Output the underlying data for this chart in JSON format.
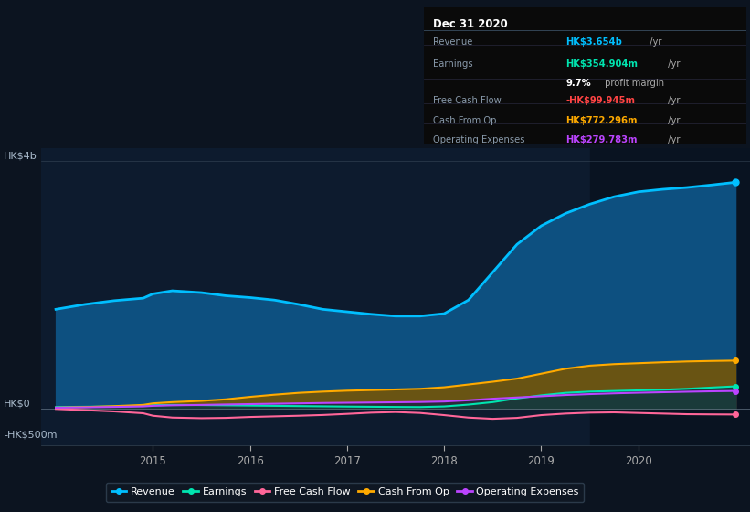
{
  "bg_color": "#0c1420",
  "chart_bg": "#0d1b2e",
  "overlay_color": "#091321",
  "x": [
    2014.0,
    2014.3,
    2014.6,
    2014.9,
    2015.0,
    2015.2,
    2015.5,
    2015.75,
    2016.0,
    2016.25,
    2016.5,
    2016.75,
    2017.0,
    2017.25,
    2017.5,
    2017.75,
    2018.0,
    2018.25,
    2018.5,
    2018.75,
    2019.0,
    2019.25,
    2019.5,
    2019.75,
    2020.0,
    2020.25,
    2020.5,
    2020.75,
    2021.0
  ],
  "revenue": [
    1600,
    1680,
    1740,
    1780,
    1850,
    1900,
    1870,
    1820,
    1790,
    1750,
    1680,
    1600,
    1560,
    1520,
    1490,
    1490,
    1530,
    1750,
    2200,
    2650,
    2950,
    3150,
    3300,
    3420,
    3500,
    3540,
    3570,
    3610,
    3654
  ],
  "earnings": [
    20,
    25,
    30,
    40,
    50,
    55,
    52,
    48,
    44,
    40,
    36,
    32,
    28,
    25,
    22,
    20,
    30,
    60,
    100,
    160,
    210,
    250,
    270,
    280,
    290,
    300,
    315,
    335,
    355
  ],
  "free_cash_flow": [
    -10,
    -30,
    -50,
    -80,
    -120,
    -150,
    -160,
    -155,
    -140,
    -130,
    -120,
    -108,
    -90,
    -70,
    -60,
    -75,
    -110,
    -150,
    -170,
    -155,
    -110,
    -85,
    -70,
    -65,
    -75,
    -85,
    -95,
    -98,
    -100
  ],
  "cash_from_op": [
    10,
    20,
    35,
    55,
    80,
    100,
    120,
    145,
    185,
    220,
    250,
    270,
    285,
    295,
    305,
    315,
    340,
    385,
    430,
    480,
    560,
    640,
    690,
    715,
    730,
    745,
    758,
    766,
    772
  ],
  "operating_expenses": [
    10,
    15,
    22,
    30,
    40,
    48,
    55,
    62,
    68,
    74,
    80,
    86,
    90,
    94,
    98,
    102,
    110,
    130,
    155,
    175,
    195,
    215,
    230,
    242,
    252,
    260,
    268,
    275,
    280
  ],
  "xlim": [
    2013.85,
    2021.15
  ],
  "ylim": [
    -600,
    4200
  ],
  "overlay_start": 2019.5,
  "xticks": [
    2015,
    2016,
    2017,
    2018,
    2019,
    2020
  ],
  "line_colors": {
    "revenue": "#00bfff",
    "earnings": "#00e5b0",
    "free_cash_flow": "#ff6699",
    "cash_from_op": "#ffaa00",
    "operating_expenses": "#bb44ff"
  },
  "fill_colors": {
    "revenue": "#0d5080",
    "cash_from_op": "#7a5500",
    "opex_earnings": "#2a2a3a"
  },
  "legend": [
    {
      "label": "Revenue",
      "color": "#00bfff"
    },
    {
      "label": "Earnings",
      "color": "#00e5b0"
    },
    {
      "label": "Free Cash Flow",
      "color": "#ff6699"
    },
    {
      "label": "Cash From Op",
      "color": "#ffaa00"
    },
    {
      "label": "Operating Expenses",
      "color": "#bb44ff"
    }
  ],
  "info_box": {
    "title": "Dec 31 2020",
    "rows": [
      {
        "label": "Revenue",
        "value": "HK$3.654b",
        "suffix": " /yr",
        "value_color": "#00bfff"
      },
      {
        "label": "Earnings",
        "value": "HK$354.904m",
        "suffix": " /yr",
        "value_color": "#00e5b0"
      },
      {
        "label": "",
        "value": "9.7%",
        "suffix": " profit margin",
        "value_color": "#ffffff"
      },
      {
        "label": "Free Cash Flow",
        "value": "-HK$99.945m",
        "suffix": " /yr",
        "value_color": "#ff4444"
      },
      {
        "label": "Cash From Op",
        "value": "HK$772.296m",
        "suffix": " /yr",
        "value_color": "#ffaa00"
      },
      {
        "label": "Operating Expenses",
        "value": "HK$279.783m",
        "suffix": " /yr",
        "value_color": "#bb44ff"
      }
    ]
  }
}
